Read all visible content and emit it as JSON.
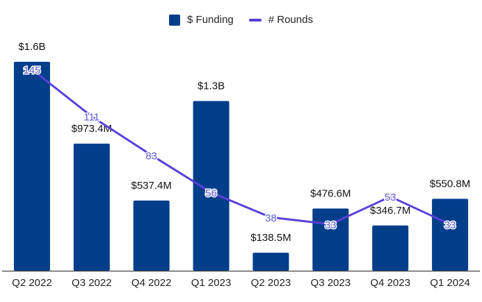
{
  "legend": {
    "funding_label": "$ Funding",
    "rounds_label": "# Rounds"
  },
  "colors": {
    "bar": "#023e8a",
    "line": "#5b3fd9",
    "line_label": "#5b5bd6",
    "axis": "#444444",
    "text": "#111111"
  },
  "chart_data": {
    "type": "bar",
    "title": "",
    "xlabel": "",
    "ylabel": "",
    "categories": [
      "Q2 2022",
      "Q3 2022",
      "Q4 2022",
      "Q1 2023",
      "Q2 2023",
      "Q3 2023",
      "Q4 2023",
      "Q1 2024"
    ],
    "series": [
      {
        "name": "$ Funding",
        "type": "bar",
        "unit": "USD millions",
        "values": [
          1600,
          973.4,
          537.4,
          1300,
          138.5,
          476.6,
          346.7,
          550.8
        ],
        "labels": [
          "$1.6B",
          "$973.4M",
          "$537.4M",
          "$1.3B",
          "$138.5M",
          "$476.6M",
          "$346.7M",
          "$550.8M"
        ]
      },
      {
        "name": "# Rounds",
        "type": "line",
        "values": [
          145,
          111,
          83,
          56,
          38,
          33,
          53,
          33
        ],
        "labels": [
          "145",
          "111",
          "83",
          "56",
          "38",
          "33",
          "53",
          "33"
        ]
      }
    ],
    "ylim": [
      0,
      1600
    ],
    "y2lim": [
      33,
      145
    ],
    "grid": false,
    "legend_position": "top-center"
  }
}
